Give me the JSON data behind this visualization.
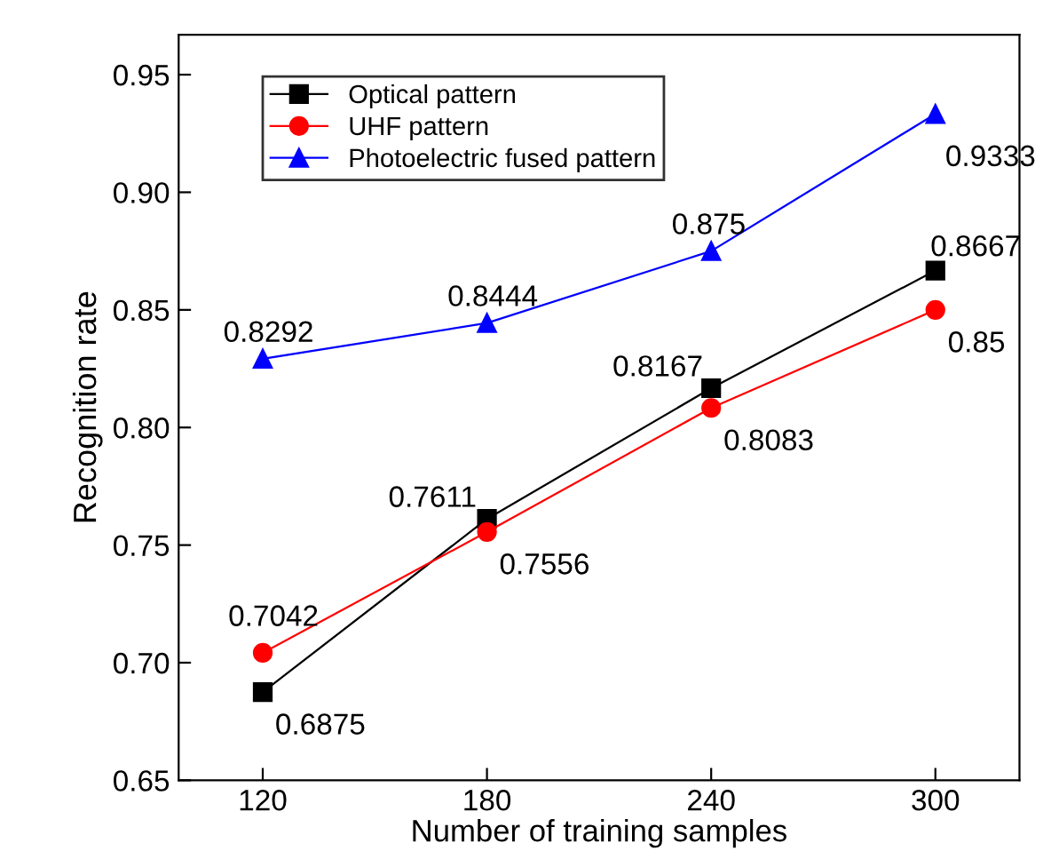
{
  "chart_data": {
    "type": "line",
    "xlabel": "Number of training samples",
    "ylabel": "Recognition rate",
    "x": [
      120,
      180,
      240,
      300
    ],
    "series": [
      {
        "name": "Optical pattern",
        "color": "#000000",
        "marker": "square",
        "values": [
          0.6875,
          0.7611,
          0.8167,
          0.8667
        ]
      },
      {
        "name": "UHF pattern",
        "color": "#ff0000",
        "marker": "circle",
        "values": [
          0.7042,
          0.7556,
          0.8083,
          0.85
        ]
      },
      {
        "name": "Photoelectric fused pattern",
        "color": "#0000ff",
        "marker": "triangle",
        "values": [
          0.8292,
          0.8444,
          0.875,
          0.9333
        ]
      }
    ],
    "xlim": [
      97.5,
      322.5
    ],
    "ylim": [
      0.65,
      0.967
    ],
    "xticks": [
      120,
      180,
      240,
      300
    ],
    "yticks": [
      {
        "value": 0.65,
        "label": "0.65"
      },
      {
        "value": 0.7,
        "label": "0.70"
      },
      {
        "value": 0.75,
        "label": "0.75"
      },
      {
        "value": 0.8,
        "label": "0.80"
      },
      {
        "value": 0.85,
        "label": "0.85"
      },
      {
        "value": 0.9,
        "label": "0.90"
      },
      {
        "value": 0.95,
        "label": "0.95"
      }
    ],
    "data_labels": true,
    "legend": "top left",
    "grid": false,
    "line_style": "solid"
  }
}
